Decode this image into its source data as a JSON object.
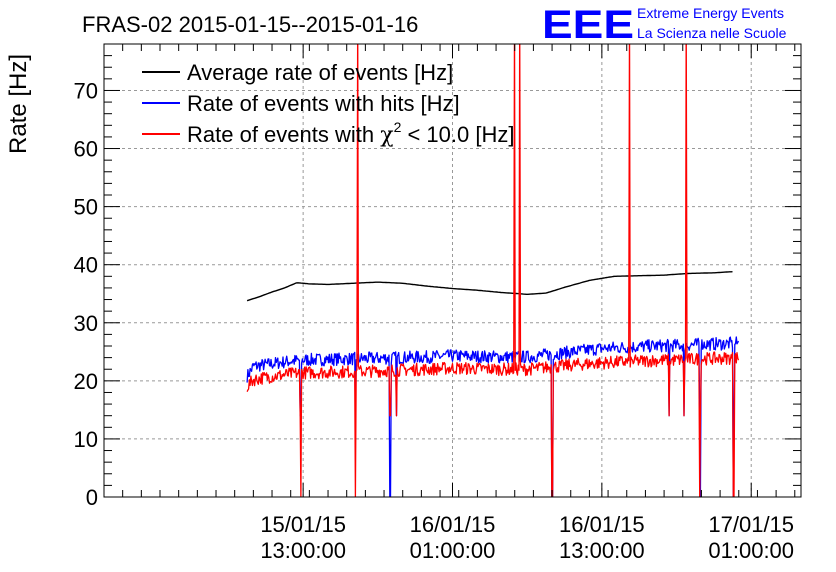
{
  "chart_data": {
    "type": "line",
    "title": "FRAS-02 2015-01-15--2015-01-16",
    "ylabel": "Rate [Hz]",
    "xlabel": "",
    "ylim": [
      0,
      78
    ],
    "xlim_hours": [
      -16,
      40
    ],
    "grid": true,
    "legend_position": "top-left",
    "yticks": [
      0,
      10,
      20,
      30,
      40,
      50,
      60,
      70
    ],
    "xticks": [
      {
        "hours": 0,
        "date": "15/01/15",
        "time": "13:00:00"
      },
      {
        "hours": 12,
        "date": "16/01/15",
        "time": "01:00:00"
      },
      {
        "hours": 24,
        "date": "16/01/15",
        "time": "13:00:00"
      },
      {
        "hours": 36,
        "date": "17/01/15",
        "time": "01:00:00"
      }
    ],
    "x_unit": "hours relative to 2015-01-15 13:00:00",
    "series": [
      {
        "name": "Average rate of events [Hz]",
        "color": "#000000",
        "x": [
          -4.5,
          -3.5,
          -2.5,
          -1.5,
          -0.5,
          0.5,
          2,
          4,
          6,
          8,
          10,
          12,
          14,
          16,
          18,
          19.5,
          21,
          23,
          25,
          27,
          29,
          31,
          33,
          34.5
        ],
        "y": [
          33.8,
          34.5,
          35.3,
          36.0,
          36.9,
          36.7,
          36.6,
          36.8,
          37.0,
          36.8,
          36.3,
          35.9,
          35.6,
          35.2,
          34.9,
          35.1,
          36.1,
          37.3,
          38.0,
          38.1,
          38.2,
          38.5,
          38.6,
          38.8
        ]
      },
      {
        "name": "Rate of events with hits [Hz]",
        "color": "#0000ff",
        "x": [
          -4.5,
          -4,
          -3,
          -2,
          -1,
          0,
          2,
          4,
          6,
          8,
          10,
          12,
          14,
          16,
          18,
          20,
          22,
          24,
          26,
          28,
          30,
          32,
          34,
          35
        ],
        "y": [
          20.8,
          22.5,
          22.8,
          23.1,
          23.4,
          23.6,
          23.7,
          23.8,
          23.9,
          24.0,
          24.1,
          24.3,
          24.2,
          24.1,
          24.1,
          24.6,
          25.1,
          25.6,
          25.8,
          26.0,
          26.1,
          26.3,
          26.4,
          26.5
        ]
      },
      {
        "name": "Rate of events with χ² < 10.0 [Hz]",
        "color": "#ff0000",
        "x": [
          -4.5,
          -4,
          -3,
          -2,
          -1,
          0,
          2,
          4,
          6,
          8,
          10,
          12,
          14,
          16,
          18,
          20,
          22,
          24,
          26,
          28,
          30,
          32,
          34,
          35
        ],
        "y": [
          19.0,
          20.2,
          20.6,
          20.9,
          21.2,
          21.4,
          21.5,
          21.6,
          21.7,
          21.9,
          22.0,
          22.2,
          22.1,
          22.0,
          22.0,
          22.4,
          22.8,
          23.1,
          23.3,
          23.5,
          23.6,
          23.8,
          23.9,
          24.0
        ]
      }
    ],
    "dips_hours": [
      -0.2,
      4.2,
      7.0,
      7.5,
      20.0,
      29.4,
      30.6,
      31.9,
      34.6
    ],
    "spikes_hours": [
      4.4,
      17.0,
      17.4,
      26.2,
      30.8
    ]
  },
  "legend": {
    "entries": [
      "Average rate of events [Hz]",
      "Rate of events with hits [Hz]"
    ],
    "chi_prefix": "Rate of events with ",
    "chi_symbol": "χ",
    "chi_superscript": "2",
    "chi_suffix": " < 10.0 [Hz]"
  },
  "logo": {
    "text": "EEE",
    "line1": "Extreme Energy Events",
    "line2": "La Scienza nelle Scuole",
    "color": "#0000ff"
  }
}
